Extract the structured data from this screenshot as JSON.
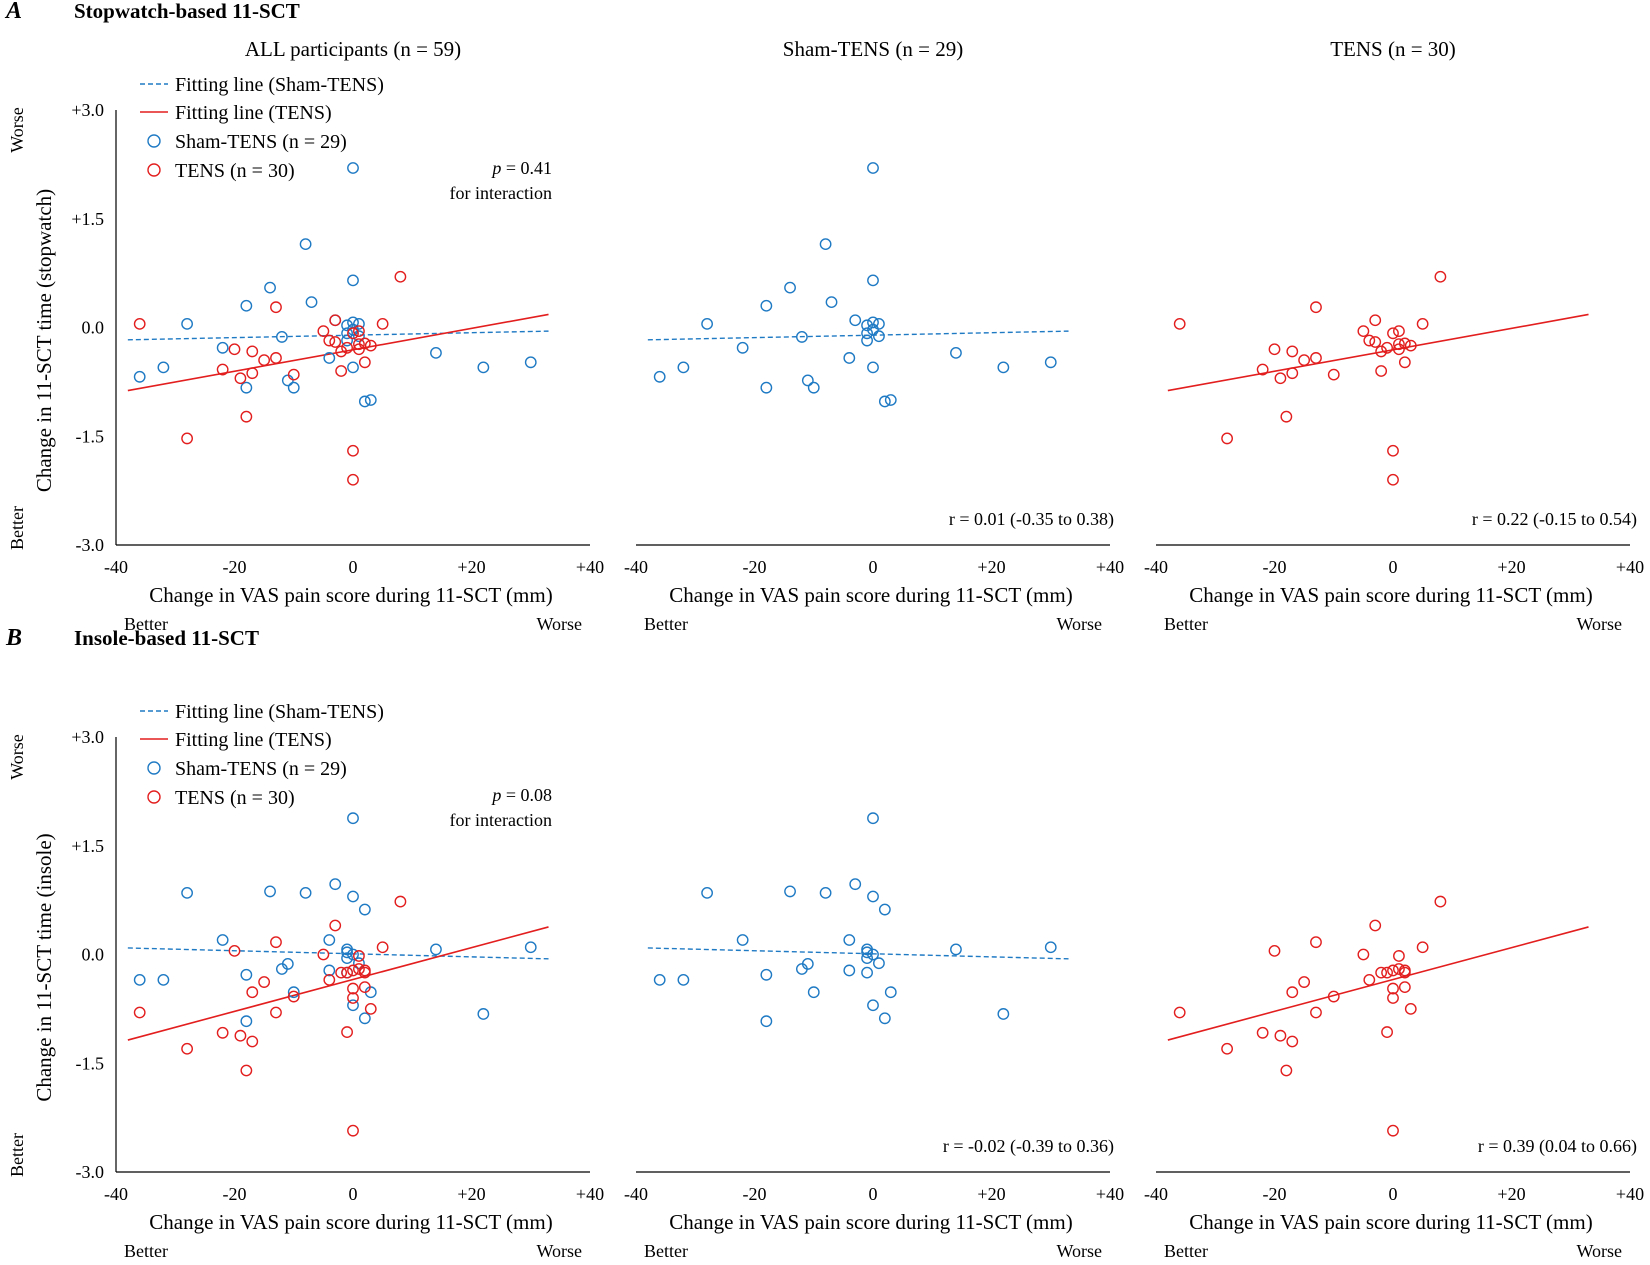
{
  "colors": {
    "sham": "#1f7ac4",
    "tens": "#e31e1e"
  },
  "panels": [
    {
      "letter": "A",
      "title": "Stopwatch-based 11-SCT",
      "ylabel": "Change in 11-SCT time (stopwatch)",
      "y_worse": "Worse",
      "y_better": "Better",
      "y_ticks": [
        "+3.0",
        "+1.5",
        "0.0",
        "-1.5",
        "-3.0"
      ],
      "p_label": "p",
      "p_value": " = 0.41",
      "p_sub": "for interaction",
      "corr_sham": "r = 0.01 (-0.35 to 0.38)",
      "corr_tens": "r = 0.22 (-0.15 to 0.54)"
    },
    {
      "letter": "B",
      "title": "Insole-based 11-SCT",
      "ylabel": "Change in 11-SCT time (insole)",
      "y_worse": "Worse",
      "y_better": "Better",
      "y_ticks": [
        "+3.0",
        "+1.5",
        "0.0",
        "-1.5",
        "-3.0"
      ],
      "p_label": "p",
      "p_value": " = 0.08",
      "p_sub": "for interaction",
      "corr_sham": "r = -0.02 (-0.39 to 0.36)",
      "corr_tens": "r = 0.39 (0.04 to 0.66)"
    }
  ],
  "columns": [
    {
      "title": "ALL participants (n = 59)"
    },
    {
      "title": "Sham-TENS (n = 29)"
    },
    {
      "title": "TENS (n = 30)"
    }
  ],
  "x_axis": {
    "label": "Change in VAS pain score during 11-SCT (mm)",
    "ticks": [
      "-40",
      "-20",
      "0",
      "+20",
      "+40"
    ],
    "better": "Better",
    "worse": "Worse"
  },
  "legend": {
    "fit_sham": "Fitting line (Sham-TENS)",
    "fit_tens": "Fitting line (TENS)",
    "pts_sham": "Sham-TENS (n = 29)",
    "pts_tens": "TENS (n = 30)"
  },
  "chart_data": [
    {
      "type": "scatter",
      "title": "Stopwatch-based 11-SCT",
      "xlabel": "Change in VAS pain score during 11-SCT (mm)",
      "ylabel": "Change in 11-SCT time (stopwatch)",
      "xlim": [
        -40,
        40
      ],
      "ylim": [
        -3,
        3
      ],
      "series": [
        {
          "name": "Sham-TENS (n = 29)",
          "points": [
            [
              -36,
              -0.68
            ],
            [
              -32,
              -0.55
            ],
            [
              -28,
              0.05
            ],
            [
              -22,
              -0.28
            ],
            [
              -18,
              -0.83
            ],
            [
              -18,
              0.3
            ],
            [
              -14,
              0.55
            ],
            [
              -12,
              -0.13
            ],
            [
              -11,
              -0.73
            ],
            [
              -10,
              -0.83
            ],
            [
              -8,
              1.15
            ],
            [
              -7,
              0.35
            ],
            [
              -4,
              -0.42
            ],
            [
              -3,
              0.1
            ],
            [
              -1,
              -0.18
            ],
            [
              -1,
              -0.08
            ],
            [
              0,
              0.07
            ],
            [
              0,
              2.2
            ],
            [
              0,
              0.65
            ],
            [
              0,
              -0.55
            ],
            [
              1,
              0.05
            ],
            [
              1,
              -0.12
            ],
            [
              2,
              -1.02
            ],
            [
              3,
              -1.0
            ],
            [
              14,
              -0.35
            ],
            [
              22,
              -0.55
            ],
            [
              30,
              -0.48
            ],
            [
              -1,
              0.03
            ],
            [
              0,
              -0.03
            ]
          ],
          "fit": {
            "x": [
              -38,
              33
            ],
            "y": [
              -0.17,
              -0.05
            ]
          }
        },
        {
          "name": "TENS (n = 30)",
          "points": [
            [
              -36,
              0.05
            ],
            [
              -28,
              -1.53
            ],
            [
              -22,
              -0.58
            ],
            [
              -20,
              -0.3
            ],
            [
              -19,
              -0.7
            ],
            [
              -18,
              -1.23
            ],
            [
              -17,
              -0.33
            ],
            [
              -17,
              -0.63
            ],
            [
              -15,
              -0.45
            ],
            [
              -13,
              0.28
            ],
            [
              -13,
              -0.42
            ],
            [
              -10,
              -0.65
            ],
            [
              -5,
              -0.05
            ],
            [
              -4,
              -0.18
            ],
            [
              -3,
              0.1
            ],
            [
              -3,
              -0.2
            ],
            [
              -2,
              -0.33
            ],
            [
              -2,
              -0.6
            ],
            [
              -1,
              -0.28
            ],
            [
              0,
              -0.08
            ],
            [
              0,
              -1.7
            ],
            [
              0,
              -2.1
            ],
            [
              1,
              -0.05
            ],
            [
              1,
              -0.23
            ],
            [
              1,
              -0.3
            ],
            [
              2,
              -0.48
            ],
            [
              2,
              -0.22
            ],
            [
              3,
              -0.25
            ],
            [
              5,
              0.05
            ],
            [
              8,
              0.7
            ]
          ],
          "fit": {
            "x": [
              -38,
              33
            ],
            "y": [
              -0.87,
              0.18
            ]
          }
        }
      ],
      "stats": {
        "p_interaction": 0.41,
        "r_sham": "0.01 (-0.35 to 0.38)",
        "r_tens": "0.22 (-0.15 to 0.54)"
      }
    },
    {
      "type": "scatter",
      "title": "Insole-based 11-SCT",
      "xlabel": "Change in VAS pain score during 11-SCT (mm)",
      "ylabel": "Change in 11-SCT time (insole)",
      "xlim": [
        -40,
        40
      ],
      "ylim": [
        -3,
        3
      ],
      "series": [
        {
          "name": "Sham-TENS (n = 29)",
          "points": [
            [
              -36,
              -0.35
            ],
            [
              -32,
              -0.35
            ],
            [
              -28,
              0.85
            ],
            [
              -22,
              0.2
            ],
            [
              -18,
              -0.92
            ],
            [
              -18,
              -0.28
            ],
            [
              -14,
              0.87
            ],
            [
              -12,
              -0.2
            ],
            [
              -11,
              -0.13
            ],
            [
              -10,
              -0.52
            ],
            [
              -8,
              0.85
            ],
            [
              -4,
              0.2
            ],
            [
              -4,
              -0.22
            ],
            [
              -3,
              0.97
            ],
            [
              -1,
              0.07
            ],
            [
              -1,
              -0.05
            ],
            [
              -1,
              -0.25
            ],
            [
              0,
              1.88
            ],
            [
              0,
              0.8
            ],
            [
              0,
              -0.7
            ],
            [
              1,
              -0.12
            ],
            [
              2,
              0.62
            ],
            [
              2,
              -0.88
            ],
            [
              3,
              -0.52
            ],
            [
              14,
              0.07
            ],
            [
              22,
              -0.82
            ],
            [
              30,
              0.1
            ],
            [
              -1,
              0.03
            ],
            [
              0,
              0.0
            ]
          ],
          "fit": {
            "x": [
              -38,
              33
            ],
            "y": [
              0.09,
              -0.06
            ]
          }
        },
        {
          "name": "TENS (n = 30)",
          "points": [
            [
              -36,
              -0.8
            ],
            [
              -28,
              -1.3
            ],
            [
              -22,
              -1.08
            ],
            [
              -20,
              0.05
            ],
            [
              -19,
              -1.12
            ],
            [
              -18,
              -1.6
            ],
            [
              -17,
              -0.52
            ],
            [
              -17,
              -1.2
            ],
            [
              -15,
              -0.38
            ],
            [
              -13,
              0.17
            ],
            [
              -13,
              -0.8
            ],
            [
              -10,
              -0.58
            ],
            [
              -5,
              0.0
            ],
            [
              -4,
              -0.35
            ],
            [
              -3,
              0.4
            ],
            [
              -2,
              -0.25
            ],
            [
              -1,
              -0.25
            ],
            [
              -1,
              -1.07
            ],
            [
              0,
              -0.22
            ],
            [
              0,
              -2.43
            ],
            [
              0,
              -0.47
            ],
            [
              0,
              -0.6
            ],
            [
              1,
              -0.2
            ],
            [
              1,
              -0.02
            ],
            [
              2,
              -0.22
            ],
            [
              2,
              -0.45
            ],
            [
              2,
              -0.25
            ],
            [
              3,
              -0.75
            ],
            [
              5,
              0.1
            ],
            [
              8,
              0.73
            ]
          ],
          "fit": {
            "x": [
              -38,
              33
            ],
            "y": [
              -1.18,
              0.38
            ]
          }
        }
      ],
      "stats": {
        "p_interaction": 0.08,
        "r_sham": "-0.02 (-0.39 to 0.36)",
        "r_tens": "0.39 (0.04 to 0.66)"
      }
    }
  ]
}
